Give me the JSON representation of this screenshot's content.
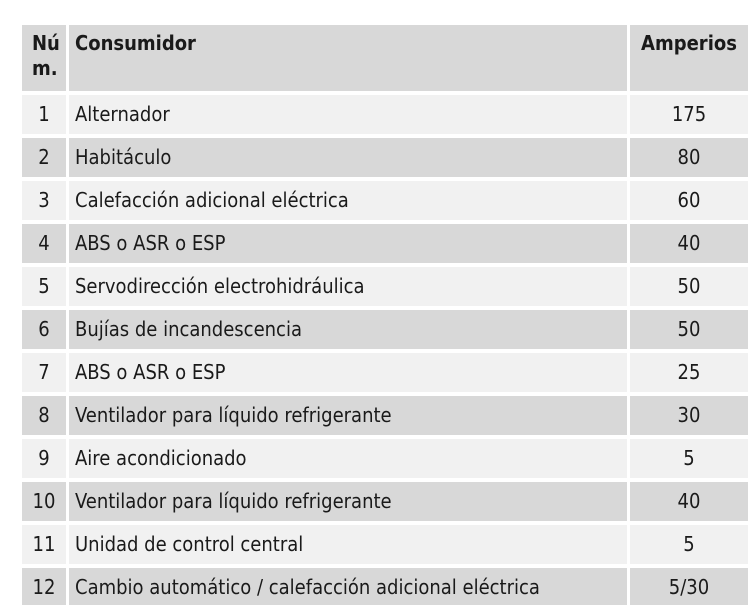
{
  "table": {
    "columns": [
      {
        "id": "num",
        "label": "Núm."
      },
      {
        "id": "consumidor",
        "label": "Consumidor"
      },
      {
        "id": "amperios",
        "label": "Amperios"
      }
    ],
    "rows": [
      {
        "num": "1",
        "consumidor": "Alternador",
        "amperios": "175"
      },
      {
        "num": "2",
        "consumidor": "Habitáculo",
        "amperios": "80"
      },
      {
        "num": "3",
        "consumidor": "Calefacción adicional eléctrica",
        "amperios": "60"
      },
      {
        "num": "4",
        "consumidor": "ABS o ASR o ESP",
        "amperios": "40"
      },
      {
        "num": "5",
        "consumidor": "Servodirección electrohidráulica",
        "amperios": "50"
      },
      {
        "num": "6",
        "consumidor": "Bujías de incandescencia",
        "amperios": "50"
      },
      {
        "num": "7",
        "consumidor": "ABS o ASR o ESP",
        "amperios": "25"
      },
      {
        "num": "8",
        "consumidor": "Ventilador para líquido refrigerante",
        "amperios": "30"
      },
      {
        "num": "9",
        "consumidor": "Aire acondicionado",
        "amperios": "5"
      },
      {
        "num": "10",
        "consumidor": "Ventilador para líquido refrigerante",
        "amperios": "40"
      },
      {
        "num": "11",
        "consumidor": "Unidad de control central",
        "amperios": "5"
      },
      {
        "num": "12",
        "consumidor": "Cambio automático / calefacción adicional eléctrica",
        "amperios": "5/30"
      }
    ],
    "colors": {
      "header_bg": "#d8d8d8",
      "row_even_bg": "#d8d8d8",
      "row_odd_bg": "#f1f1f1",
      "gap": "#ffffff",
      "text": "#1a1a1a"
    }
  }
}
